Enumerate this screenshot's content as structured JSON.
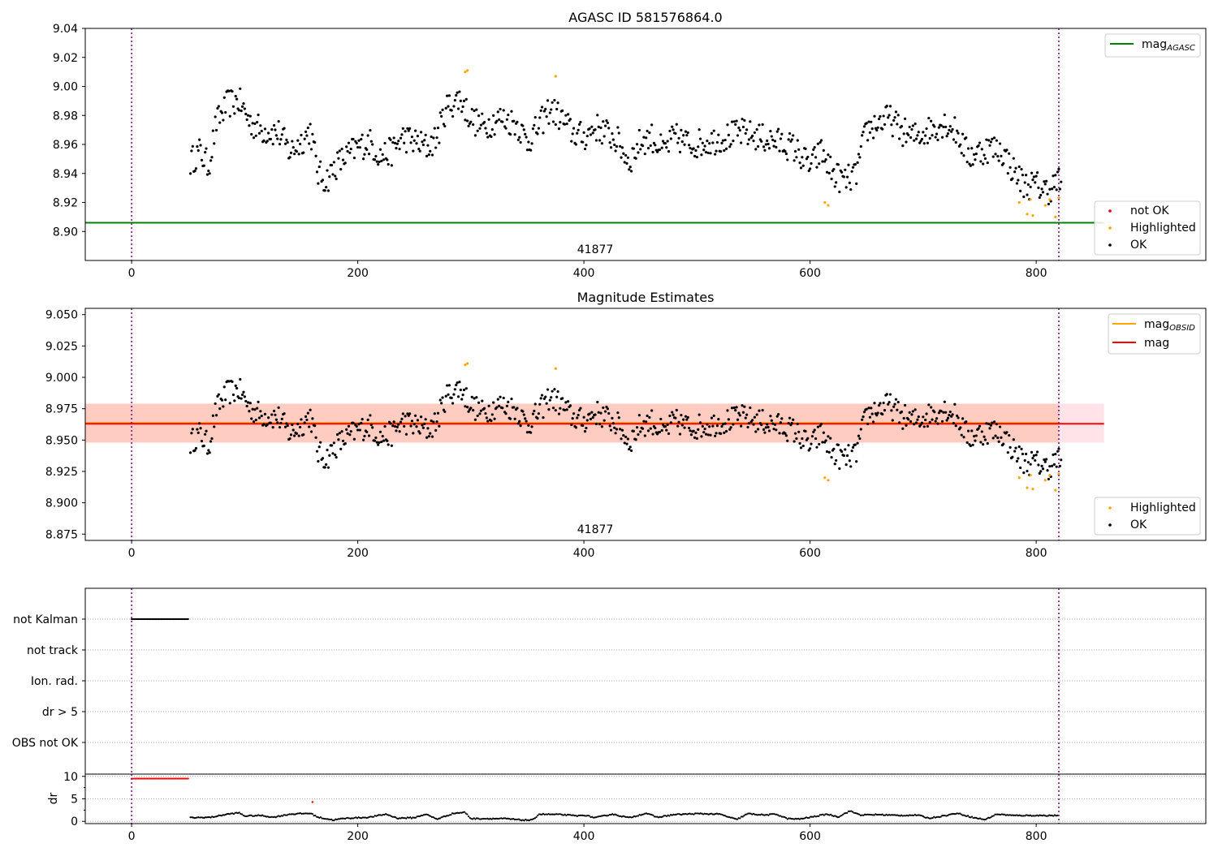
{
  "chart_data": [
    {
      "type": "scatter",
      "title": "AGASC ID 581576864.0",
      "xlim": [
        -41,
        950
      ],
      "ylim": [
        8.88,
        9.04
      ],
      "x_ticks": [
        0,
        200,
        400,
        600,
        800
      ],
      "y_ticks": [
        8.9,
        8.92,
        8.94,
        8.96,
        8.98,
        9.0,
        9.02,
        9.04
      ],
      "obsid_label": "41877",
      "obsid_label_x": 410,
      "vlines": [
        0,
        820
      ],
      "hlines": [
        {
          "name": "mag_agasc",
          "y": 8.906,
          "x": [
            -41,
            860
          ],
          "color": "#008000"
        }
      ],
      "legend_lines": [
        {
          "name": "mag_agasc",
          "label": "mag",
          "sub": "AGASC",
          "color": "#008000"
        }
      ],
      "legend_points": [
        {
          "name": "not-ok",
          "label": "not OK",
          "color": "#ff0000"
        },
        {
          "name": "highlighted",
          "label": "Highlighted",
          "color": "#ffa500"
        },
        {
          "name": "ok",
          "label": "OK",
          "color": "#000000"
        }
      ],
      "highlighted_points": [
        [
          295,
          9.01
        ],
        [
          297,
          9.011
        ],
        [
          375,
          9.007
        ],
        [
          613,
          8.92
        ],
        [
          616,
          8.918
        ],
        [
          785,
          8.92
        ],
        [
          792,
          8.912
        ],
        [
          795,
          8.922
        ],
        [
          797,
          8.911
        ],
        [
          808,
          8.918
        ],
        [
          812,
          8.922
        ],
        [
          817,
          8.91
        ],
        [
          820,
          8.923
        ]
      ],
      "ok_trend": [
        [
          52,
          8.948
        ],
        [
          60,
          8.955
        ],
        [
          68,
          8.945
        ],
        [
          75,
          8.975
        ],
        [
          85,
          8.988
        ],
        [
          95,
          8.99
        ],
        [
          105,
          8.975
        ],
        [
          115,
          8.97
        ],
        [
          130,
          8.968
        ],
        [
          140,
          8.955
        ],
        [
          150,
          8.962
        ],
        [
          158,
          8.97
        ],
        [
          165,
          8.94
        ],
        [
          172,
          8.935
        ],
        [
          180,
          8.945
        ],
        [
          190,
          8.952
        ],
        [
          200,
          8.958
        ],
        [
          210,
          8.962
        ],
        [
          220,
          8.952
        ],
        [
          230,
          8.955
        ],
        [
          240,
          8.965
        ],
        [
          250,
          8.962
        ],
        [
          262,
          8.958
        ],
        [
          270,
          8.965
        ],
        [
          278,
          8.985
        ],
        [
          290,
          8.992
        ],
        [
          300,
          8.978
        ],
        [
          310,
          8.972
        ],
        [
          325,
          8.978
        ],
        [
          340,
          8.975
        ],
        [
          350,
          8.962
        ],
        [
          360,
          8.972
        ],
        [
          370,
          8.985
        ],
        [
          380,
          8.978
        ],
        [
          390,
          8.968
        ],
        [
          400,
          8.965
        ],
        [
          410,
          8.972
        ],
        [
          420,
          8.968
        ],
        [
          430,
          8.962
        ],
        [
          440,
          8.948
        ],
        [
          450,
          8.962
        ],
        [
          460,
          8.965
        ],
        [
          470,
          8.955
        ],
        [
          480,
          8.965
        ],
        [
          495,
          8.96
        ],
        [
          510,
          8.962
        ],
        [
          525,
          8.965
        ],
        [
          540,
          8.968
        ],
        [
          555,
          8.965
        ],
        [
          570,
          8.962
        ],
        [
          585,
          8.958
        ],
        [
          600,
          8.945
        ],
        [
          610,
          8.955
        ],
        [
          620,
          8.94
        ],
        [
          630,
          8.935
        ],
        [
          640,
          8.938
        ],
        [
          650,
          8.97
        ],
        [
          660,
          8.975
        ],
        [
          670,
          8.978
        ],
        [
          680,
          8.97
        ],
        [
          690,
          8.965
        ],
        [
          700,
          8.968
        ],
        [
          710,
          8.972
        ],
        [
          720,
          8.975
        ],
        [
          730,
          8.968
        ],
        [
          740,
          8.952
        ],
        [
          750,
          8.955
        ],
        [
          760,
          8.958
        ],
        [
          770,
          8.955
        ],
        [
          780,
          8.942
        ],
        [
          790,
          8.932
        ],
        [
          800,
          8.932
        ],
        [
          810,
          8.928
        ],
        [
          820,
          8.935
        ]
      ]
    },
    {
      "type": "scatter",
      "title": "Magnitude Estimates",
      "xlim": [
        -41,
        950
      ],
      "ylim": [
        8.87,
        9.055
      ],
      "x_ticks": [
        0,
        200,
        400,
        600,
        800
      ],
      "y_ticks": [
        8.875,
        8.9,
        8.925,
        8.95,
        8.975,
        9.0,
        9.025,
        9.05
      ],
      "obsid_label": "41877",
      "obsid_label_x": 410,
      "vlines": [
        0,
        820
      ],
      "mag_line": {
        "y": 8.963,
        "x": [
          -41,
          860
        ],
        "color": "#ff0000"
      },
      "mag_obsid_line": {
        "y": 8.963,
        "x": [
          -41,
          820
        ],
        "color": "#ffa500"
      },
      "mag_band": {
        "low": 8.948,
        "high": 8.979,
        "x": [
          -41,
          860
        ],
        "color": "#ffc0cb"
      },
      "mag_obsid_band": {
        "low": 8.948,
        "high": 8.979,
        "x": [
          -41,
          820
        ],
        "color": "#ffa07a"
      },
      "legend_lines": [
        {
          "name": "mag_obsid",
          "label": "mag",
          "sub": "OBSID",
          "color": "#ffa500"
        },
        {
          "name": "mag",
          "label": "mag",
          "sub": "",
          "color": "#ff0000"
        }
      ],
      "legend_points": [
        {
          "name": "highlighted",
          "label": "Highlighted",
          "color": "#ffa500"
        },
        {
          "name": "ok",
          "label": "OK",
          "color": "#000000"
        }
      ]
    },
    {
      "type": "scatter",
      "title": "",
      "xlim": [
        -41,
        950
      ],
      "category_rows": [
        "not Kalman",
        "not track",
        "Ion. rad.",
        "dr > 5",
        "OBS not OK"
      ],
      "flag_points": {
        "row": "not Kalman",
        "x_range": [
          0,
          50
        ],
        "color": "#000000"
      },
      "vlines": [
        0,
        820
      ],
      "dr_axis": {
        "ylabel": "dr",
        "ylim": [
          -0.5,
          10.5
        ],
        "y_ticks": [
          0,
          5,
          10
        ],
        "x_ticks": [
          0,
          200,
          400,
          600,
          800
        ],
        "clipped_points": {
          "x_range": [
            0,
            50
          ],
          "y": 9.5,
          "color": "#ff0000"
        },
        "outlier": {
          "x": 160,
          "y": 4.3,
          "color": "#ff0000"
        },
        "trend": [
          [
            52,
            0.8
          ],
          [
            70,
            0.9
          ],
          [
            85,
            1.6
          ],
          [
            95,
            1.9
          ],
          [
            100,
            1.2
          ],
          [
            115,
            1.3
          ],
          [
            125,
            0.9
          ],
          [
            140,
            1.6
          ],
          [
            158,
            1.8
          ],
          [
            165,
            0.9
          ],
          [
            178,
            0.3
          ],
          [
            190,
            0.7
          ],
          [
            210,
            0.9
          ],
          [
            225,
            1.6
          ],
          [
            235,
            0.7
          ],
          [
            250,
            0.8
          ],
          [
            260,
            1.6
          ],
          [
            270,
            0.5
          ],
          [
            285,
            1.8
          ],
          [
            295,
            2.0
          ],
          [
            300,
            0.6
          ],
          [
            330,
            0.6
          ],
          [
            345,
            0.3
          ],
          [
            355,
            0.3
          ],
          [
            360,
            1.6
          ],
          [
            380,
            1.5
          ],
          [
            395,
            1.2
          ],
          [
            400,
            1.4
          ],
          [
            410,
            0.8
          ],
          [
            425,
            1.6
          ],
          [
            440,
            0.8
          ],
          [
            455,
            1.8
          ],
          [
            465,
            0.9
          ],
          [
            480,
            1.5
          ],
          [
            500,
            1.7
          ],
          [
            520,
            1.6
          ],
          [
            535,
            0.4
          ],
          [
            545,
            1.7
          ],
          [
            560,
            1.4
          ],
          [
            570,
            1.6
          ],
          [
            580,
            0.6
          ],
          [
            590,
            0.5
          ],
          [
            600,
            0.9
          ],
          [
            615,
            1.6
          ],
          [
            625,
            1.0
          ],
          [
            635,
            2.3
          ],
          [
            645,
            1.4
          ],
          [
            660,
            1.5
          ],
          [
            680,
            1.3
          ],
          [
            695,
            1.4
          ],
          [
            705,
            0.7
          ],
          [
            720,
            1.3
          ],
          [
            730,
            1.8
          ],
          [
            745,
            0.8
          ],
          [
            755,
            0.4
          ],
          [
            765,
            1.6
          ],
          [
            780,
            1.3
          ],
          [
            800,
            1.3
          ],
          [
            820,
            1.3
          ]
        ]
      }
    }
  ]
}
